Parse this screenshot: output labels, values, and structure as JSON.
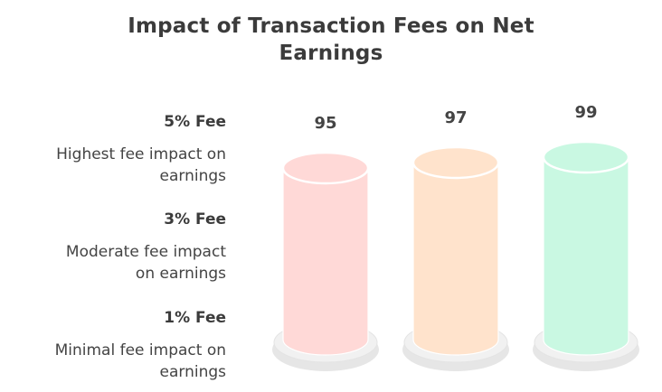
{
  "title": {
    "line1": "Impact of Transaction Fees on Net",
    "line2": "Earnings"
  },
  "legend": [
    {
      "fee": "5% Fee",
      "description_line1": "Highest fee impact on",
      "description_line2": "earnings"
    },
    {
      "fee": "3% Fee",
      "description_line1": "Moderate fee impact",
      "description_line2": "on earnings"
    },
    {
      "fee": "1% Fee",
      "description_line1": "Minimal fee impact on",
      "description_line2": "earnings"
    }
  ],
  "chart_data": {
    "type": "bar",
    "categories": [
      "5% Fee",
      "3% Fee",
      "1% Fee"
    ],
    "values": [
      95,
      97,
      99
    ],
    "value_labels": [
      "95",
      "97",
      "99"
    ],
    "colors": [
      "#ffd9d7",
      "#ffe3cc",
      "#c9f8e2"
    ],
    "title": "Impact of Transaction Fees on Net Earnings"
  }
}
